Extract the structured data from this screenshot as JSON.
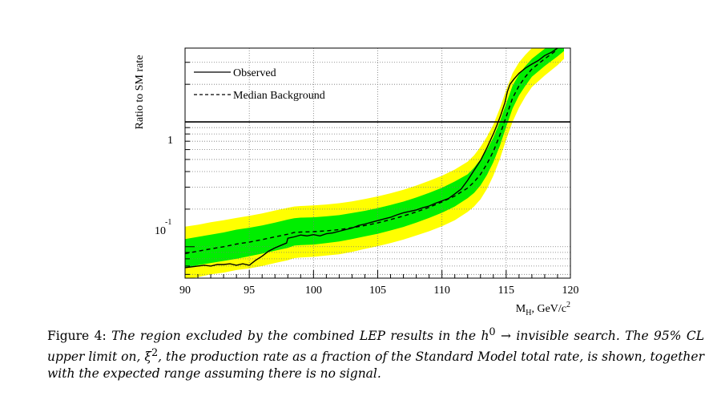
{
  "chart_data": {
    "type": "line",
    "title": "",
    "xlabel": "M_H, GeV/c^2",
    "xlabel_main": "M",
    "xlabel_sub": "H",
    "xlabel_rest": ", GeV/c",
    "xlabel_sup": "2",
    "ylabel": "Ratio to SM rate",
    "xlim": [
      90,
      120
    ],
    "ylim": [
      0.056,
      3.9
    ],
    "y_scale": "log",
    "grid": true,
    "legend_position": "top-left",
    "x_tick_labels": [
      "90",
      "95",
      "100",
      "105",
      "110",
      "115",
      "120"
    ],
    "x_ticks": [
      90,
      95,
      100,
      105,
      110,
      115,
      120
    ],
    "y_tick_1_label": "1",
    "y_tick_01_base": "10",
    "y_tick_01_exp": "-1",
    "reference_line": 1,
    "colors": {
      "band_2sigma": "#ffff00",
      "band_1sigma": "#00ee00",
      "line": "#000000"
    },
    "series": [
      {
        "name": "Observed",
        "style": "solid",
        "x": [
          90,
          90.5,
          91,
          91.5,
          92,
          92.5,
          93,
          93.5,
          94,
          94.5,
          95,
          95.5,
          96,
          96.5,
          97,
          97.5,
          97.9,
          98,
          98.5,
          99,
          99.5,
          100,
          100.5,
          101,
          101.5,
          102,
          102.5,
          103,
          103.5,
          104,
          104.5,
          105,
          105.5,
          106,
          106.5,
          107,
          107.5,
          108,
          108.5,
          109,
          109.5,
          110,
          110.5,
          111,
          111.5,
          112,
          112.5,
          113,
          113.5,
          114,
          114.3,
          114.6,
          114.9,
          115.1,
          115.3,
          115.6,
          116,
          116.5,
          117,
          117.5,
          118,
          118.5,
          119
        ],
        "y": [
          0.068,
          0.069,
          0.07,
          0.071,
          0.07,
          0.072,
          0.072,
          0.073,
          0.071,
          0.073,
          0.071,
          0.078,
          0.084,
          0.092,
          0.098,
          0.103,
          0.107,
          0.117,
          0.12,
          0.124,
          0.122,
          0.125,
          0.122,
          0.127,
          0.129,
          0.133,
          0.137,
          0.141,
          0.148,
          0.152,
          0.157,
          0.162,
          0.167,
          0.172,
          0.18,
          0.187,
          0.192,
          0.197,
          0.205,
          0.212,
          0.223,
          0.233,
          0.243,
          0.265,
          0.29,
          0.34,
          0.41,
          0.49,
          0.62,
          0.8,
          0.95,
          1.15,
          1.42,
          1.75,
          2.0,
          2.2,
          2.45,
          2.7,
          2.9,
          3.1,
          3.4,
          3.6,
          3.9
        ]
      },
      {
        "name": "Median Background",
        "style": "dashed",
        "x": [
          90,
          91,
          92,
          93,
          94,
          95,
          96,
          97,
          98,
          98.5,
          99,
          100,
          101,
          102,
          103,
          104,
          105,
          106,
          107,
          108,
          109,
          110,
          111,
          112,
          112.5,
          113,
          113.5,
          114,
          114.5,
          115,
          115.5,
          116,
          116.5,
          117,
          118,
          119
        ],
        "y": [
          0.088,
          0.092,
          0.096,
          0.1,
          0.105,
          0.109,
          0.114,
          0.12,
          0.126,
          0.13,
          0.131,
          0.132,
          0.134,
          0.137,
          0.142,
          0.148,
          0.155,
          0.165,
          0.176,
          0.19,
          0.207,
          0.228,
          0.255,
          0.295,
          0.33,
          0.38,
          0.46,
          0.58,
          0.78,
          1.1,
          1.55,
          1.95,
          2.3,
          2.65,
          3.2,
          3.8
        ]
      }
    ],
    "band_x": [
      90,
      91,
      92,
      93,
      94,
      95,
      96,
      97,
      98,
      98.5,
      99,
      100,
      101,
      102,
      103,
      104,
      105,
      106,
      107,
      108,
      109,
      110,
      111,
      112,
      112.5,
      113,
      113.5,
      114,
      114.5,
      115,
      115.5,
      116,
      116.5,
      117,
      118,
      119,
      119.5
    ],
    "band_2sigma_low": [
      0.055,
      0.057,
      0.06,
      0.062,
      0.065,
      0.067,
      0.07,
      0.074,
      0.078,
      0.081,
      0.082,
      0.083,
      0.085,
      0.087,
      0.091,
      0.096,
      0.101,
      0.107,
      0.114,
      0.123,
      0.133,
      0.146,
      0.163,
      0.19,
      0.21,
      0.24,
      0.29,
      0.37,
      0.5,
      0.72,
      1.0,
      1.3,
      1.6,
      1.9,
      2.35,
      2.85,
      3.2
    ],
    "band_1sigma_low": [
      0.068,
      0.071,
      0.074,
      0.077,
      0.08,
      0.084,
      0.088,
      0.093,
      0.098,
      0.102,
      0.103,
      0.104,
      0.107,
      0.11,
      0.115,
      0.121,
      0.127,
      0.135,
      0.144,
      0.156,
      0.17,
      0.187,
      0.21,
      0.245,
      0.27,
      0.31,
      0.375,
      0.475,
      0.64,
      0.91,
      1.28,
      1.63,
      1.95,
      2.3,
      2.8,
      3.35,
      3.7
    ],
    "band_1sigma_high": [
      0.115,
      0.12,
      0.125,
      0.13,
      0.137,
      0.142,
      0.148,
      0.156,
      0.165,
      0.169,
      0.171,
      0.172,
      0.175,
      0.179,
      0.186,
      0.194,
      0.204,
      0.216,
      0.23,
      0.248,
      0.27,
      0.297,
      0.333,
      0.38,
      0.43,
      0.5,
      0.6,
      0.75,
      1.0,
      1.4,
      1.95,
      2.4,
      2.8,
      3.2,
      3.85,
      4.4,
      4.6
    ],
    "band_2sigma_high": [
      0.145,
      0.15,
      0.157,
      0.163,
      0.17,
      0.177,
      0.185,
      0.195,
      0.205,
      0.21,
      0.212,
      0.214,
      0.218,
      0.223,
      0.231,
      0.241,
      0.253,
      0.268,
      0.286,
      0.309,
      0.337,
      0.37,
      0.415,
      0.48,
      0.54,
      0.63,
      0.76,
      0.95,
      1.28,
      1.8,
      2.45,
      3.0,
      3.45,
      3.9,
      4.5,
      5.0,
      5.2
    ]
  },
  "caption": {
    "label": "Figure 4:",
    "text_part1": "The region excluded by the combined LEP results in the ",
    "symbol_h": "h",
    "symbol_h_sup": "0",
    "arrow": " → ",
    "text_part2": "invisible search. The 95% CL upper limit on, ",
    "symbol_xi": "ξ",
    "symbol_xi_sup": "2",
    "text_part3": ", the production rate as a fraction of the Standard Model total rate, is shown, together with the expected range assuming there is no signal."
  }
}
